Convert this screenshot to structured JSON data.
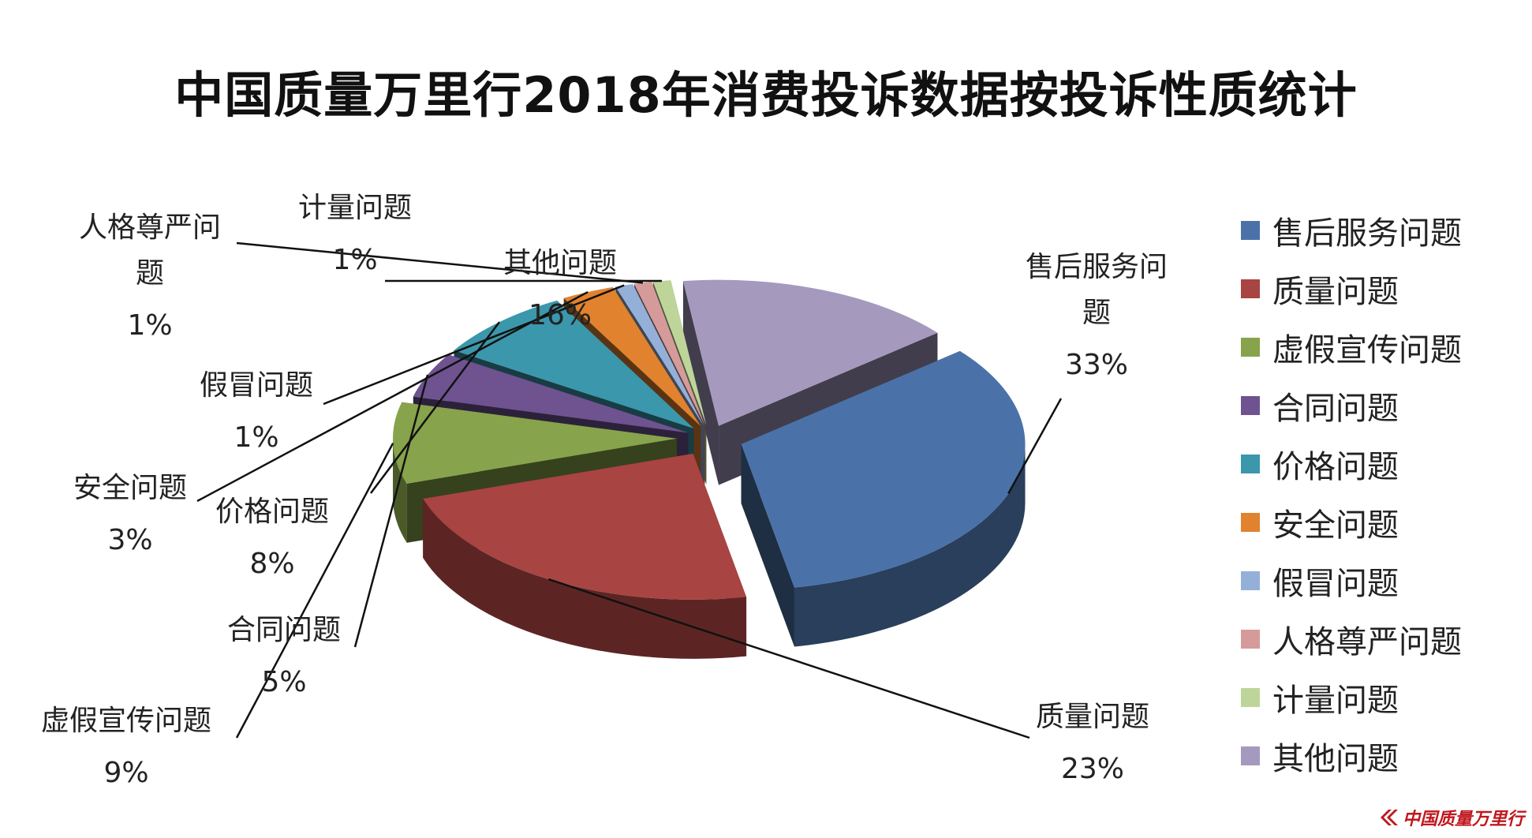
{
  "chart_data": {
    "type": "pie",
    "title": "中国质量万里行2018年消费投诉数据按投诉性质统计",
    "legend_position": "right",
    "slices": [
      {
        "name": "售后服务问题",
        "value": 33,
        "label": "33%",
        "color": "#4a72a8"
      },
      {
        "name": "质量问题",
        "value": 23,
        "label": "23%",
        "color": "#a84442"
      },
      {
        "name": "虚假宣传问题",
        "value": 9,
        "label": "9%",
        "color": "#87a34b"
      },
      {
        "name": "合同问题",
        "value": 5,
        "label": "5%",
        "color": "#6e5390"
      },
      {
        "name": "价格问题",
        "value": 8,
        "label": "8%",
        "color": "#3b97ab"
      },
      {
        "name": "安全问题",
        "value": 3,
        "label": "3%",
        "color": "#e1822e"
      },
      {
        "name": "假冒问题",
        "value": 1,
        "label": "1%",
        "color": "#95b0d8"
      },
      {
        "name": "人格尊严问题",
        "value": 1,
        "label": "1%",
        "color": "#d59b9a"
      },
      {
        "name": "计量问题",
        "value": 1,
        "label": "1%",
        "color": "#bed59a"
      },
      {
        "name": "其他问题",
        "value": 16,
        "label": "16%",
        "color": "#a699be"
      }
    ]
  },
  "watermark": {
    "text": "中国质量万里行"
  }
}
